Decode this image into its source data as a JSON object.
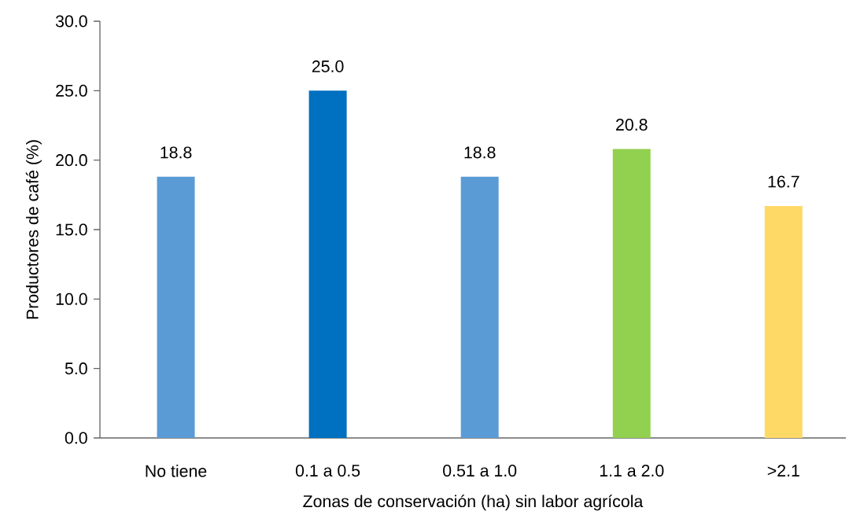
{
  "chart_data": {
    "type": "bar",
    "xlabel": "Zonas de conservación (ha) sin labor agrícola",
    "ylabel": "Productores de café (%)",
    "categories": [
      "No tiene",
      "0.1 a 0.5",
      "0.51 a 1.0",
      "1.1 a 2.0",
      ">2.1"
    ],
    "values": [
      18.8,
      25.0,
      18.8,
      20.8,
      16.7
    ],
    "colors": [
      "#5b9bd5",
      "#0070c0",
      "#5b9bd5",
      "#92d050",
      "#ffd966"
    ],
    "value_labels": [
      "18.8",
      "25.0",
      "18.8",
      "20.8",
      "16.7"
    ],
    "ylim": [
      0,
      30
    ],
    "yticks": [
      {
        "value": 0,
        "label": "0.0"
      },
      {
        "value": 5,
        "label": "5.0"
      },
      {
        "value": 10,
        "label": "10.0"
      },
      {
        "value": 15,
        "label": "15.0"
      },
      {
        "value": 20,
        "label": "20.0"
      },
      {
        "value": 25,
        "label": "25.0"
      },
      {
        "value": 30,
        "label": "30.0"
      }
    ],
    "grid": false
  }
}
